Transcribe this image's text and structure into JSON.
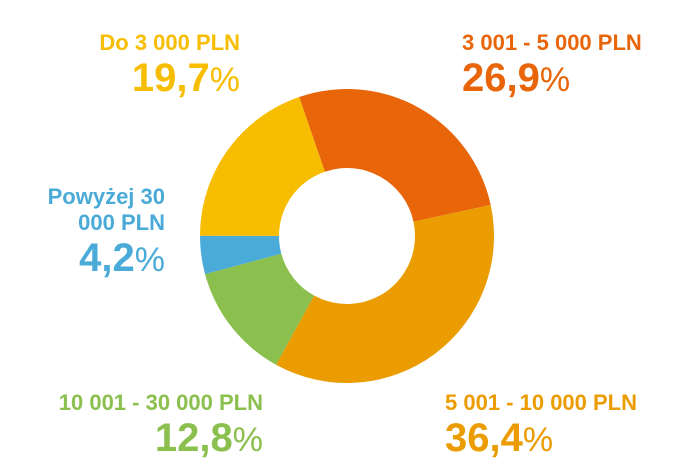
{
  "chart_data": {
    "type": "donut",
    "categories": [
      "3 001 - 5 000 PLN",
      "5 001 - 10 000 PLN",
      "10 001 - 30 000 PLN",
      "Powyżej 30 000 PLN",
      "Do 3 000 PLN"
    ],
    "values": [
      26.9,
      36.4,
      12.8,
      4.2,
      19.7
    ],
    "value_labels": [
      "26,9",
      "36,4",
      "12,8",
      "4,2",
      "19,7"
    ],
    "unit": "%",
    "colors": [
      "#e8650a",
      "#eb9c00",
      "#8bbf4e",
      "#4aaad8",
      "#f7bd00"
    ]
  }
}
